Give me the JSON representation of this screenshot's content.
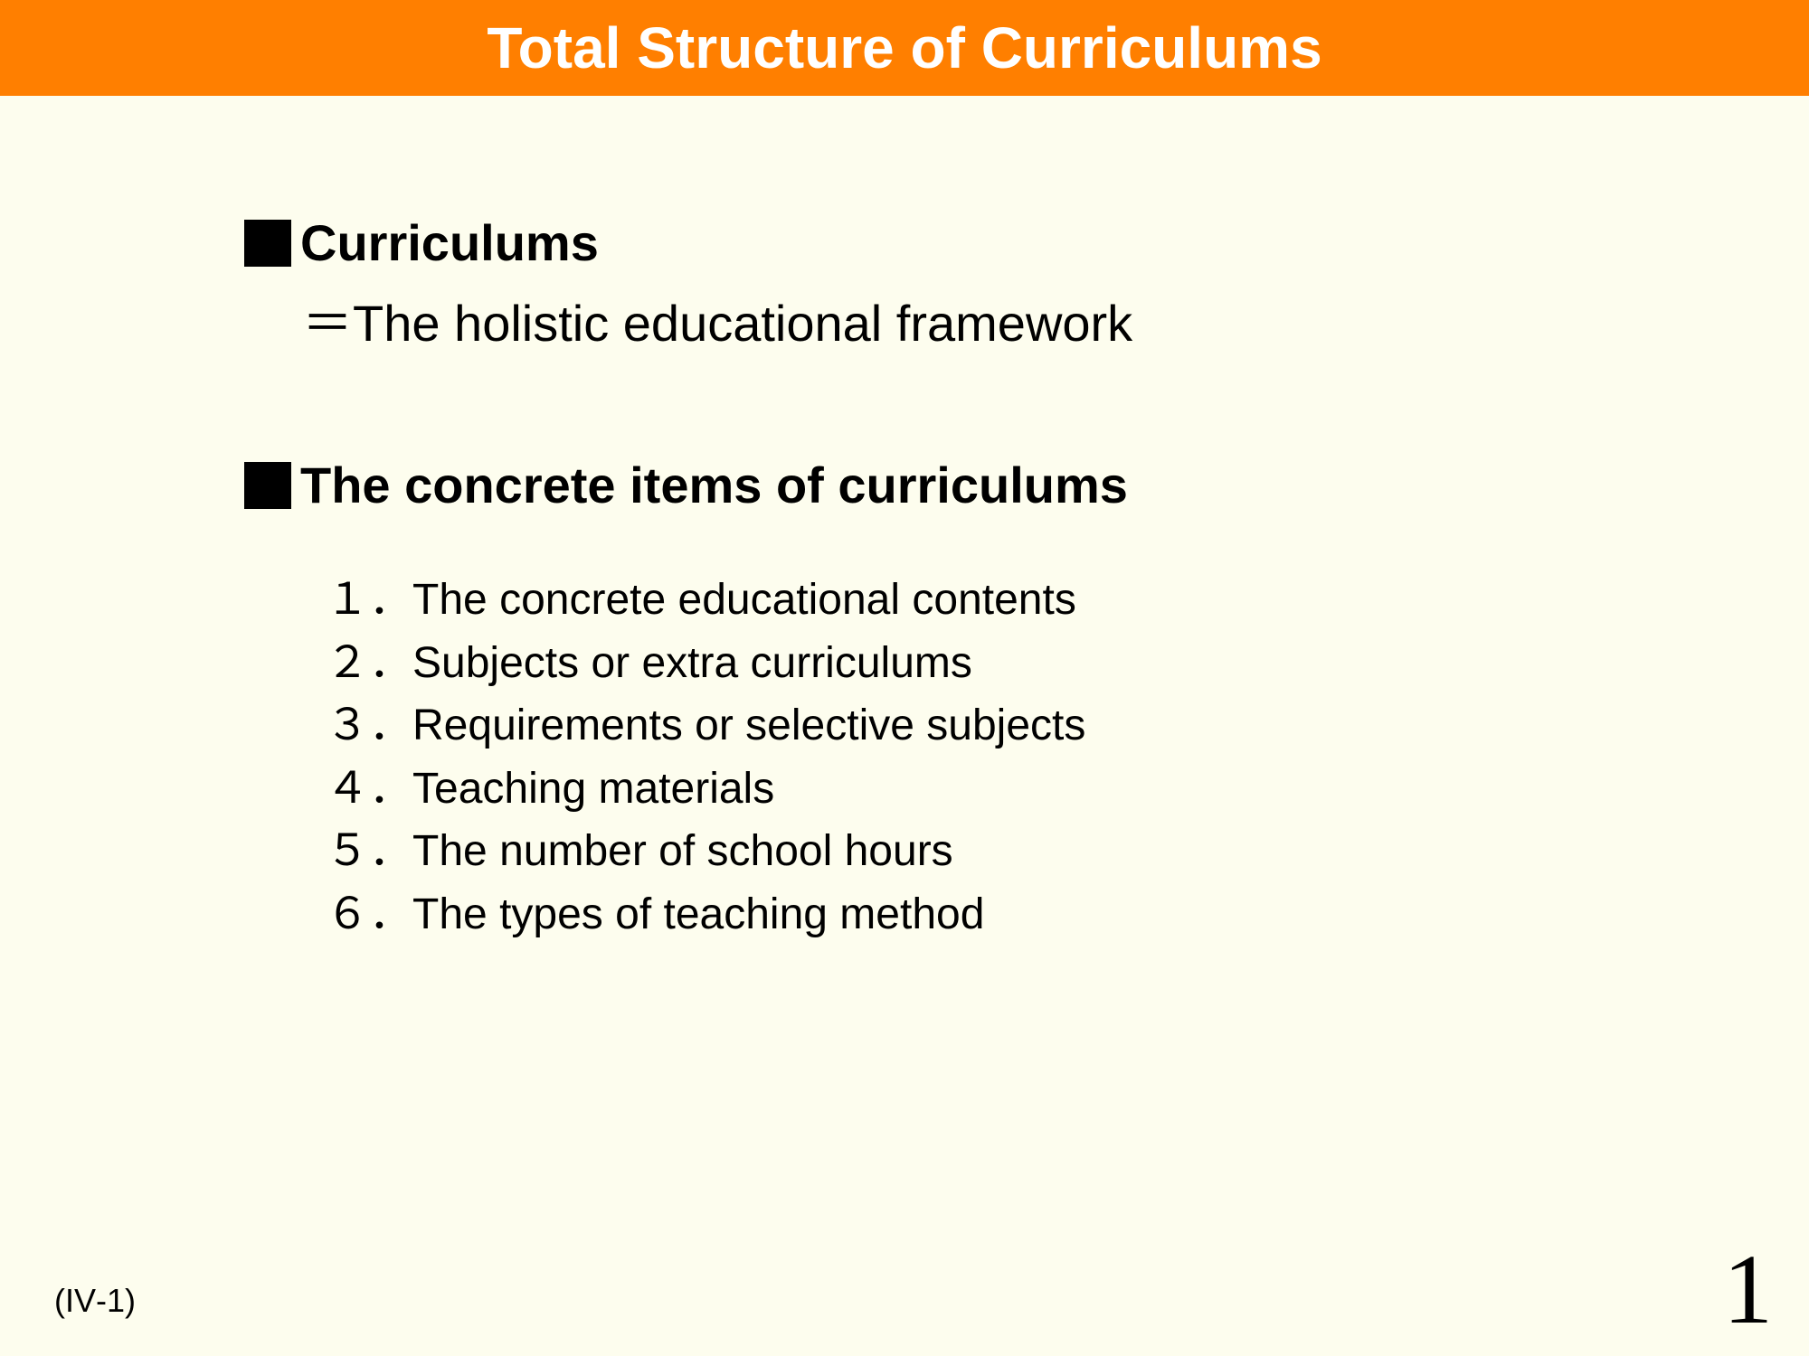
{
  "colors": {
    "title_bg": "#ff7f00",
    "title_text": "#ffffff",
    "page_bg": "#fdfdee",
    "body_text": "#000000",
    "bullet": "#000000"
  },
  "title": "Total Structure of Curriculums",
  "section1": {
    "heading": "Curriculums",
    "definition": "＝The holistic educational framework"
  },
  "section2": {
    "heading": "The concrete items of curriculums",
    "items": [
      {
        "num": "１．",
        "text": "The concrete educational contents"
      },
      {
        "num": "２．",
        "text": "Subjects or extra curriculums"
      },
      {
        "num": "３．",
        "text": "Requirements or selective subjects"
      },
      {
        "num": "４．",
        "text": "Teaching materials"
      },
      {
        "num": "５．",
        "text": "The number of school hours"
      },
      {
        "num": "６．",
        "text": "The types of teaching method"
      }
    ]
  },
  "footer_ref": "(IV‐1)",
  "page_number": "1"
}
